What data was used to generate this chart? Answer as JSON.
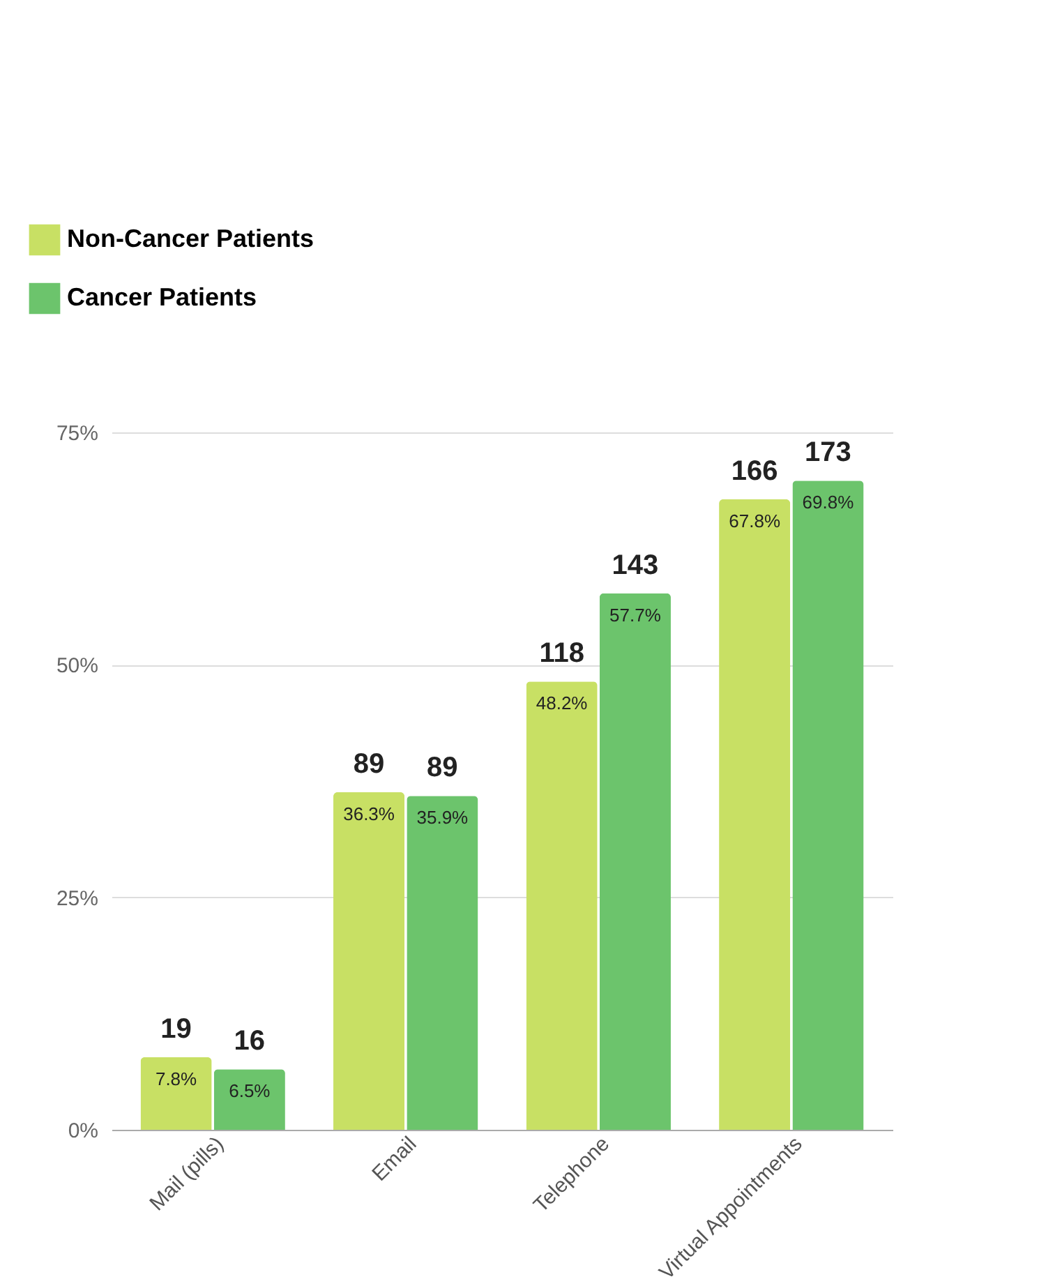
{
  "chart_data": {
    "type": "bar",
    "categories": [
      "Mail (pills)",
      "Email",
      "Telephone",
      "Virtual Appointments"
    ],
    "series": [
      {
        "name": "Non-Cancer Patients",
        "color": "#c8e064",
        "values": [
          7.8,
          36.3,
          48.2,
          67.8
        ],
        "value_labels": [
          "7.8%",
          "36.3%",
          "48.2%",
          "67.8%"
        ]
      },
      {
        "name": "Cancer Patients",
        "color": "#6cc46c",
        "values": [
          6.5,
          35.9,
          57.7,
          69.8
        ],
        "value_labels": [
          "6.5%",
          "35.9%",
          "57.7%",
          "69.8%"
        ]
      }
    ],
    "ylim": [
      0,
      75
    ],
    "yticks": [
      {
        "value": 0,
        "label": "0%"
      },
      {
        "value": 25,
        "label": "25%"
      },
      {
        "value": 50,
        "label": "50%"
      },
      {
        "value": 75,
        "label": "75%"
      }
    ],
    "grid": "y",
    "legend": "top left",
    "annotations": [
      "19",
      "89",
      "118",
      "166",
      "16",
      "89",
      "143",
      "173"
    ]
  }
}
